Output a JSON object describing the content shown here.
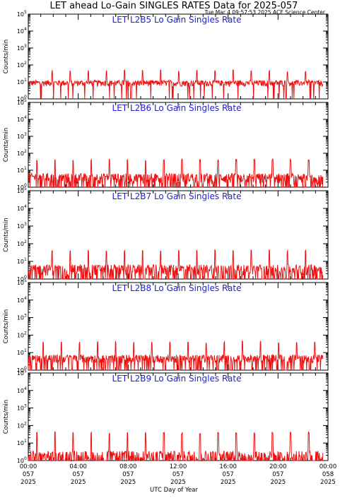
{
  "header": {
    "title": "LET ahead Lo-Gain SINGLES RATES Data for 2025-057",
    "timestamp": "Tue Mar  4 09:57:53 2025 ACE Science Center"
  },
  "colors": {
    "series": "#ee1111",
    "panel_title": "#1f1fd0",
    "axes": "#000000"
  },
  "chart_data": {
    "type": "line",
    "xlabel": "UTC Day of Year",
    "ylabel": "Counts/min",
    "yscale": "log",
    "ylim": [
      1,
      100000
    ],
    "y_ticks": [
      {
        "base": "10",
        "exp": "0"
      },
      {
        "base": "10",
        "exp": "1"
      },
      {
        "base": "10",
        "exp": "2"
      },
      {
        "base": "10",
        "exp": "3"
      },
      {
        "base": "10",
        "exp": "4"
      },
      {
        "base": "10",
        "exp": "5"
      }
    ],
    "x_ticks": [
      {
        "time": "00:00",
        "doy": "057",
        "year": "2025"
      },
      {
        "time": "04:00",
        "doy": "057",
        "year": "2025"
      },
      {
        "time": "08:00",
        "doy": "057",
        "year": "2025"
      },
      {
        "time": "12:00",
        "doy": "057",
        "year": "2025"
      },
      {
        "time": "16:00",
        "doy": "057",
        "year": "2025"
      },
      {
        "time": "20:00",
        "doy": "057",
        "year": "2025"
      },
      {
        "time": "00:00",
        "doy": "058",
        "year": "2025"
      }
    ],
    "xlim_hours": [
      0,
      24
    ],
    "panels": [
      {
        "title": "LET L2B5 Lo Gain Singles Rate",
        "baseline": 9,
        "noise": 3.5,
        "spike_peak": 45,
        "spike_start_hr": 1.9,
        "dip_rate": 0.05
      },
      {
        "title": "LET L2B6 Lo Gain Singles Rate",
        "baseline": 4,
        "noise": 2.5,
        "spike_peak": 40,
        "spike_start_hr": 0.7,
        "dip_rate": 0.25
      },
      {
        "title": "LET L2B7 Lo Gain Singles Rate",
        "baseline": 4,
        "noise": 2.5,
        "spike_peak": 40,
        "spike_start_hr": 1.9,
        "dip_rate": 0.25
      },
      {
        "title": "LET L2B8 Lo Gain Singles Rate",
        "baseline": 5,
        "noise": 2.5,
        "spike_peak": 40,
        "spike_start_hr": 1.2,
        "dip_rate": 0.2
      },
      {
        "title": "LET L2B9 Lo Gain Singles Rate",
        "baseline": 2,
        "noise": 1.5,
        "spike_peak": 38,
        "spike_start_hr": 0.7,
        "dip_rate": 0.35
      }
    ],
    "spike_interval_hr": 1.45,
    "series_ends_hr": 23.6,
    "grid": false
  }
}
